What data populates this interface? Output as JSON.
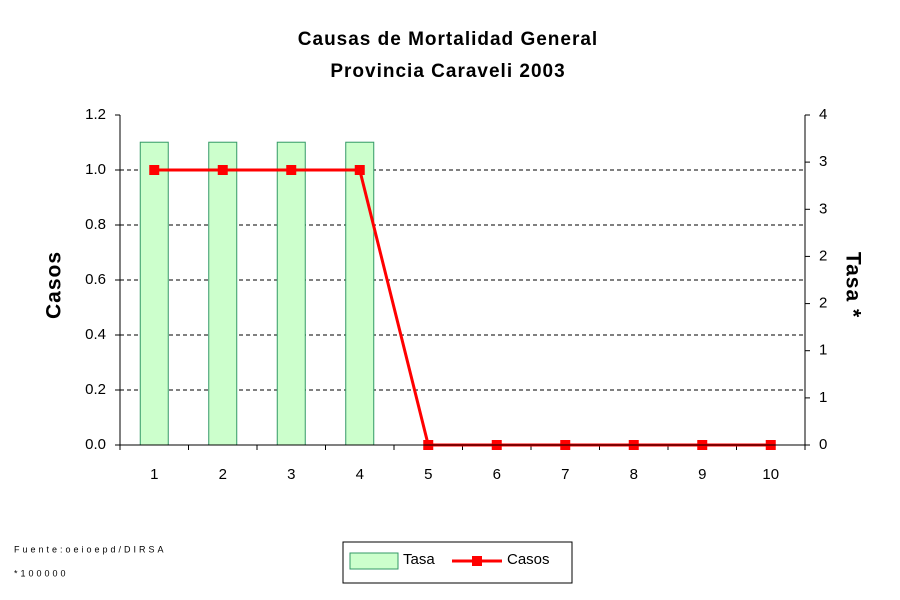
{
  "chart_data": {
    "type": "bar-line",
    "title": "Causas de Mortalidad General",
    "subtitle": "Provincia Caraveli 2003",
    "y_label": "Casos",
    "y2_label": "Tasa *",
    "categories": [
      "1",
      "2",
      "3",
      "4",
      "5",
      "6",
      "7",
      "8",
      "9",
      "10"
    ],
    "series": [
      {
        "name": "Tasa",
        "type": "bar",
        "axis": "y2",
        "color": "#ccffcc",
        "edgecolor": "#339966",
        "values": [
          3.67,
          3.67,
          3.67,
          3.67,
          0,
          0,
          0,
          0,
          0,
          0
        ]
      },
      {
        "name": "Casos",
        "type": "line",
        "color": "#ff0000",
        "values": [
          1,
          1,
          1,
          1,
          0,
          0,
          0,
          0,
          0,
          0
        ]
      }
    ],
    "ylim": [
      0,
      1.2
    ],
    "yticks": [
      {
        "value": 0,
        "label": "0.0"
      },
      0.2,
      0.4,
      0.6,
      0.8,
      {
        "value": 1,
        "label": "1.0"
      },
      1.2
    ],
    "y2lim": [
      0,
      4
    ],
    "y2ticks": [
      0,
      {
        "value": 0.571,
        "label": "1"
      },
      {
        "value": 1.143,
        "label": "1"
      },
      {
        "value": 1.714,
        "label": "2"
      },
      {
        "value": 2.286,
        "label": "2"
      },
      {
        "value": 2.857,
        "label": "3"
      },
      {
        "value": 3.429,
        "label": "3"
      },
      4
    ],
    "grid": true,
    "legend": "bottom",
    "notes": [
      "Fuente:oeioepd/DIRSA",
      "*100000"
    ]
  }
}
